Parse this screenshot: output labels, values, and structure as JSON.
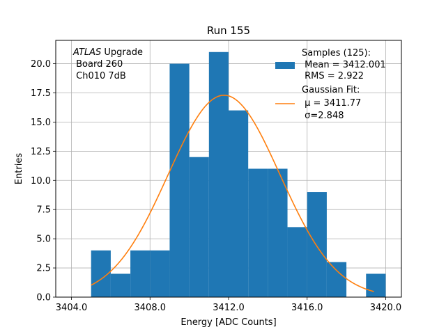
{
  "chart_data": {
    "type": "bar",
    "title": "Run 155",
    "xlabel": "Energy [ADC Counts]",
    "ylabel": "Entries",
    "xlim": [
      3403.2,
      3420.8
    ],
    "ylim": [
      0.0,
      22.0
    ],
    "grid": true,
    "xticks": [
      3404.0,
      3408.0,
      3412.0,
      3416.0,
      3420.0
    ],
    "xtick_labels": [
      "3404.0",
      "3408.0",
      "3412.0",
      "3416.0",
      "3420.0"
    ],
    "yticks": [
      0.0,
      2.5,
      5.0,
      7.5,
      10.0,
      12.5,
      15.0,
      17.5,
      20.0
    ],
    "ytick_labels": [
      "0.0",
      "2.5",
      "5.0",
      "7.5",
      "10.0",
      "12.5",
      "15.0",
      "17.5",
      "20.0"
    ],
    "histogram": {
      "name": "Samples (125):",
      "color": "#1f77b4",
      "bin_edges": [
        3405,
        3406,
        3407,
        3408,
        3409,
        3410,
        3411,
        3412,
        3413,
        3414,
        3415,
        3416,
        3417,
        3418,
        3419,
        3420
      ],
      "counts": [
        4,
        2,
        4,
        4,
        20,
        12,
        21,
        16,
        11,
        11,
        6,
        9,
        3,
        0,
        2
      ]
    },
    "fit": {
      "name": "Gaussian Fit:",
      "color": "#ff7f0e",
      "mu": 3411.77,
      "sigma": 2.848,
      "peak": 17.3,
      "x_range": [
        3405.0,
        3419.4
      ]
    },
    "legend": {
      "placement": "top-right",
      "samples_lines": [
        "Samples (125):",
        " Mean = 3412.001",
        " RMS = 2.922"
      ],
      "fit_lines": [
        "Gaussian Fit:",
        " μ = 3411.77",
        " σ=2.848"
      ]
    },
    "annotation": {
      "placement": "top-left",
      "italic_part": "ATLAS",
      "rest_line1": " Upgrade",
      "line2": " Board 260",
      "line3": " Ch010 7dB"
    }
  }
}
